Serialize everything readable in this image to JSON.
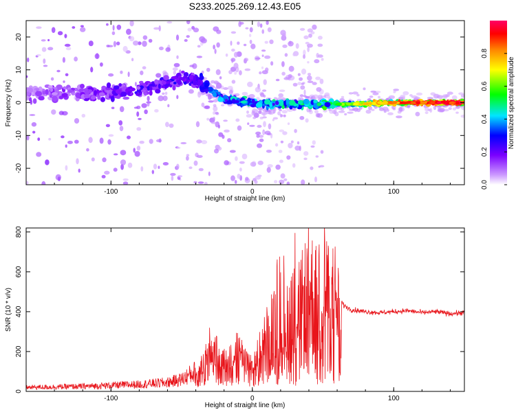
{
  "title": "S233.2025.269.12.43.E05",
  "colors": {
    "snr_line": "#e8151b",
    "background": "#ffffff",
    "axis": "#000000"
  },
  "chart_data": [
    {
      "type": "heatmap",
      "name": "spectrogram",
      "xlabel": "Height of straight line (km)",
      "ylabel": "Frequency (Hz)",
      "xlim": [
        -160,
        150
      ],
      "ylim": [
        -25,
        25
      ],
      "x_ticks": [
        -100,
        0,
        100
      ],
      "y_ticks": [
        -20,
        -10,
        0,
        10,
        20
      ],
      "grid": false,
      "colorbar": {
        "label": "Normalized spectral amplitude",
        "range": [
          0,
          1
        ],
        "ticks": [
          "0.0",
          "0.2",
          "0.4",
          "0.6",
          "0.8"
        ],
        "colormap": [
          "#ffffff",
          "#cc99ff",
          "#7a00ff",
          "#0000ff",
          "#00e5ff",
          "#00ff00",
          "#ffff00",
          "#ff8800",
          "#ff0000",
          "#ff0066"
        ]
      },
      "ridge": [
        {
          "x": -150,
          "y": 3,
          "amp": 0.18
        },
        {
          "x": -120,
          "y": 3,
          "amp": 0.22
        },
        {
          "x": -100,
          "y": 3,
          "amp": 0.25
        },
        {
          "x": -80,
          "y": 4,
          "amp": 0.28
        },
        {
          "x": -60,
          "y": 6,
          "amp": 0.3
        },
        {
          "x": -40,
          "y": 7,
          "amp": 0.3
        },
        {
          "x": -30,
          "y": 4,
          "amp": 0.4
        },
        {
          "x": -20,
          "y": 1,
          "amp": 0.45
        },
        {
          "x": 0,
          "y": 0,
          "amp": 0.5
        },
        {
          "x": 20,
          "y": -0.5,
          "amp": 0.5
        },
        {
          "x": 40,
          "y": -0.5,
          "amp": 0.55
        },
        {
          "x": 60,
          "y": -0.5,
          "amp": 0.6
        },
        {
          "x": 80,
          "y": -0.3,
          "amp": 0.75
        },
        {
          "x": 100,
          "y": 0,
          "amp": 0.85
        },
        {
          "x": 120,
          "y": 0,
          "amp": 0.95
        },
        {
          "x": 150,
          "y": 0,
          "amp": 1.0
        }
      ]
    },
    {
      "type": "line",
      "name": "snr",
      "xlabel": "Height of straight line (km)",
      "ylabel": "SNR (10 * v/v)",
      "xlim": [
        -160,
        150
      ],
      "ylim": [
        0,
        820
      ],
      "x_ticks": [
        -100,
        0,
        100
      ],
      "y_ticks": [
        0,
        200,
        400,
        600,
        800
      ],
      "grid": false,
      "series": [
        {
          "name": "SNR",
          "x": [
            -160,
            -120,
            -80,
            -60,
            -50,
            -40,
            -35,
            -30,
            -25,
            -20,
            -10,
            0,
            10,
            15,
            20,
            25,
            30,
            35,
            40,
            45,
            50,
            55,
            60,
            62,
            63,
            65,
            70,
            80,
            90,
            100,
            110,
            120,
            130,
            140,
            150
          ],
          "y": [
            20,
            25,
            35,
            45,
            60,
            100,
            180,
            300,
            250,
            200,
            280,
            160,
            380,
            450,
            700,
            500,
            720,
            600,
            750,
            650,
            830,
            600,
            700,
            400,
            450,
            430,
            410,
            400,
            395,
            400,
            405,
            395,
            400,
            390,
            395
          ]
        }
      ]
    }
  ]
}
